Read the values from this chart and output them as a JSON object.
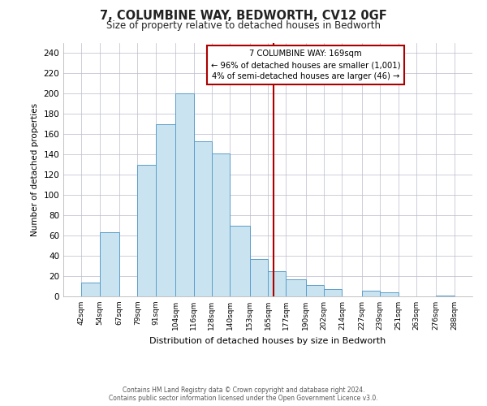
{
  "title": "7, COLUMBINE WAY, BEDWORTH, CV12 0GF",
  "subtitle": "Size of property relative to detached houses in Bedworth",
  "xlabel": "Distribution of detached houses by size in Bedworth",
  "ylabel": "Number of detached properties",
  "bar_left_edges": [
    42,
    54,
    67,
    79,
    91,
    104,
    116,
    128,
    140,
    153,
    165,
    177,
    190,
    202,
    214,
    227,
    239,
    251,
    263,
    276
  ],
  "bar_heights": [
    14,
    63,
    0,
    130,
    170,
    200,
    153,
    141,
    70,
    37,
    25,
    17,
    11,
    7,
    0,
    6,
    4,
    0,
    0,
    1
  ],
  "bar_widths": [
    12,
    13,
    12,
    12,
    13,
    12,
    12,
    12,
    13,
    12,
    12,
    13,
    12,
    12,
    13,
    12,
    12,
    12,
    13,
    12
  ],
  "tick_labels": [
    "42sqm",
    "54sqm",
    "67sqm",
    "79sqm",
    "91sqm",
    "104sqm",
    "116sqm",
    "128sqm",
    "140sqm",
    "153sqm",
    "165sqm",
    "177sqm",
    "190sqm",
    "202sqm",
    "214sqm",
    "227sqm",
    "239sqm",
    "251sqm",
    "263sqm",
    "276sqm",
    "288sqm"
  ],
  "tick_positions": [
    42,
    54,
    67,
    79,
    91,
    104,
    116,
    128,
    140,
    153,
    165,
    177,
    190,
    202,
    214,
    227,
    239,
    251,
    263,
    276,
    288
  ],
  "bar_color": "#c9e4f0",
  "bar_edge_color": "#5b9dc9",
  "vline_x": 169,
  "vline_color": "#aa0000",
  "ylim": [
    0,
    250
  ],
  "xlim": [
    30,
    300
  ],
  "yticks": [
    0,
    20,
    40,
    60,
    80,
    100,
    120,
    140,
    160,
    180,
    200,
    220,
    240
  ],
  "annotation_title": "7 COLUMBINE WAY: 169sqm",
  "annotation_line1": "← 96% of detached houses are smaller (1,001)",
  "annotation_line2": "4% of semi-detached houses are larger (46) →",
  "footer_line1": "Contains HM Land Registry data © Crown copyright and database right 2024.",
  "footer_line2": "Contains public sector information licensed under the Open Government Licence v3.0.",
  "background_color": "#ffffff",
  "grid_color": "#bbbbcc"
}
